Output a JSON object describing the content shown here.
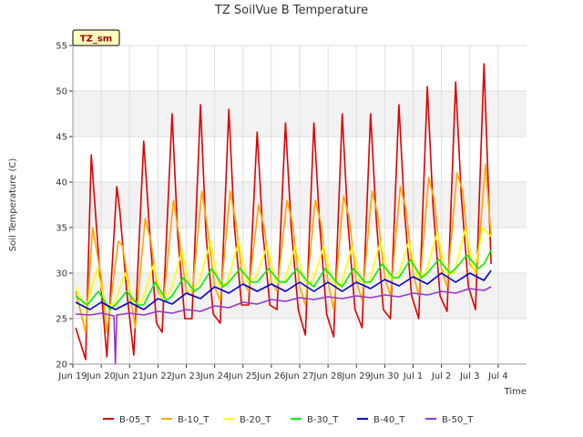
{
  "chart_data": {
    "type": "line",
    "title": "TZ SoilVue B Temperature",
    "xlabel": "Time",
    "ylabel": "Soil Temperature (C)",
    "badge": "TZ_sm",
    "ylim": [
      20,
      55
    ],
    "yticks": [
      20,
      25,
      30,
      35,
      40,
      45,
      50,
      55
    ],
    "xlim": [
      0,
      16
    ],
    "xtick_labels": [
      "Jun 19",
      "Jun 20",
      "Jun 21",
      "Jun 22",
      "Jun 23",
      "Jun 24",
      "Jun 25",
      "Jun 26",
      "Jun 27",
      "Jun 28",
      "Jun 29",
      "Jun 30",
      "Jul 1",
      "Jul 2",
      "Jul 3",
      "Jul 4"
    ],
    "band_color": "#f2f2f2",
    "grid": true,
    "legend_position": "bottom",
    "series": [
      {
        "name": "B-05_T",
        "color": "#dd0000",
        "x": [
          0.1,
          0.45,
          0.65,
          0.95,
          1.2,
          1.55,
          1.65,
          1.9,
          2.15,
          2.5,
          2.7,
          2.95,
          3.15,
          3.5,
          3.7,
          3.95,
          4.2,
          4.5,
          4.7,
          4.95,
          5.2,
          5.5,
          5.7,
          5.95,
          6.2,
          6.5,
          6.7,
          6.95,
          7.2,
          7.5,
          7.7,
          7.95,
          8.2,
          8.5,
          8.7,
          8.95,
          9.2,
          9.5,
          9.7,
          9.95,
          10.2,
          10.5,
          10.7,
          10.95,
          11.2,
          11.5,
          11.7,
          11.95,
          12.2,
          12.5,
          12.7,
          12.95,
          13.2,
          13.5,
          13.7,
          13.95,
          14.2,
          14.5,
          14.75
        ],
        "y": [
          24.0,
          20.5,
          43.0,
          30.0,
          20.8,
          39.5,
          37.0,
          28.0,
          21.0,
          44.5,
          35.0,
          24.5,
          23.5,
          47.5,
          34.0,
          25.0,
          25.0,
          48.5,
          34.0,
          25.5,
          24.5,
          48.0,
          35.0,
          26.5,
          26.5,
          45.5,
          34.5,
          26.5,
          26.0,
          46.5,
          35.0,
          26.0,
          23.2,
          46.5,
          35.5,
          25.5,
          23.0,
          47.5,
          35.5,
          26.0,
          24.0,
          47.5,
          36.0,
          26.0,
          25.0,
          48.5,
          36.5,
          27.5,
          25.0,
          50.5,
          37.5,
          27.5,
          25.8,
          51.0,
          38.5,
          28.5,
          26.0,
          53.0,
          31.0
        ]
      },
      {
        "name": "B-10_T",
        "color": "#ffa500",
        "x": [
          0.1,
          0.45,
          0.7,
          1.0,
          1.2,
          1.6,
          1.75,
          2.0,
          2.2,
          2.55,
          2.75,
          3.0,
          3.2,
          3.55,
          3.75,
          4.0,
          4.2,
          4.55,
          4.75,
          5.0,
          5.2,
          5.55,
          5.75,
          6.0,
          6.2,
          6.55,
          6.75,
          7.0,
          7.2,
          7.55,
          7.75,
          8.0,
          8.2,
          8.55,
          8.75,
          9.0,
          9.2,
          9.55,
          9.75,
          10.0,
          10.2,
          10.55,
          10.75,
          11.0,
          11.2,
          11.55,
          11.75,
          12.0,
          12.2,
          12.55,
          12.75,
          13.0,
          13.2,
          13.55,
          13.75,
          14.0,
          14.25,
          14.55,
          14.75
        ],
        "y": [
          28.0,
          23.5,
          35.0,
          29.5,
          23.5,
          33.5,
          33.0,
          28.0,
          24.0,
          36.0,
          33.5,
          28.0,
          27.0,
          38.0,
          34.0,
          28.0,
          27.5,
          39.0,
          35.0,
          28.5,
          27.0,
          39.0,
          35.5,
          29.0,
          28.0,
          37.5,
          35.0,
          29.0,
          28.0,
          38.0,
          35.5,
          28.5,
          26.5,
          38.0,
          35.5,
          29.0,
          26.0,
          38.5,
          36.0,
          29.0,
          27.0,
          39.0,
          36.5,
          29.5,
          27.5,
          39.5,
          37.0,
          30.0,
          27.5,
          40.5,
          38.0,
          30.5,
          28.5,
          41.0,
          39.0,
          31.0,
          30.0,
          42.0,
          34.0
        ]
      },
      {
        "name": "B-20_T",
        "color": "#ffff00",
        "x": [
          0.1,
          0.45,
          0.85,
          1.15,
          1.45,
          1.85,
          2.15,
          2.45,
          2.85,
          3.15,
          3.45,
          3.85,
          4.15,
          4.45,
          4.85,
          5.15,
          5.45,
          5.85,
          6.15,
          6.45,
          6.85,
          7.15,
          7.45,
          7.85,
          8.15,
          8.45,
          8.85,
          9.15,
          9.45,
          9.85,
          10.15,
          10.45,
          10.85,
          11.15,
          11.45,
          11.85,
          12.15,
          12.45,
          12.85,
          13.15,
          13.45,
          13.85,
          14.15,
          14.45,
          14.75
        ],
        "y": [
          28.5,
          26.0,
          30.5,
          26.5,
          26.5,
          30.0,
          26.5,
          27.0,
          31.0,
          27.0,
          28.0,
          32.5,
          28.0,
          29.0,
          33.5,
          28.5,
          29.0,
          33.5,
          29.0,
          29.5,
          33.0,
          29.0,
          29.0,
          33.0,
          29.0,
          29.0,
          33.0,
          29.0,
          28.5,
          33.0,
          29.0,
          29.0,
          33.5,
          29.5,
          29.5,
          33.5,
          29.5,
          30.0,
          34.5,
          30.0,
          30.0,
          35.0,
          30.0,
          35.0,
          34.0
        ]
      },
      {
        "name": "B-30_T",
        "color": "#00ee00",
        "x": [
          0.1,
          0.5,
          0.9,
          1.3,
          1.5,
          1.9,
          2.3,
          2.5,
          2.9,
          3.3,
          3.5,
          3.9,
          4.3,
          4.5,
          4.9,
          5.3,
          5.5,
          5.9,
          6.3,
          6.5,
          6.9,
          7.3,
          7.5,
          7.9,
          8.3,
          8.5,
          8.9,
          9.3,
          9.5,
          9.9,
          10.3,
          10.5,
          10.9,
          11.3,
          11.5,
          11.9,
          12.3,
          12.5,
          12.9,
          13.3,
          13.5,
          13.9,
          14.3,
          14.5,
          14.75
        ],
        "y": [
          27.5,
          26.5,
          28.0,
          26.0,
          26.5,
          28.0,
          26.5,
          26.5,
          29.0,
          27.0,
          27.5,
          29.5,
          28.0,
          28.5,
          30.5,
          28.5,
          29.0,
          30.5,
          29.0,
          29.0,
          30.5,
          29.0,
          29.0,
          30.5,
          29.0,
          28.5,
          30.5,
          29.0,
          28.5,
          30.5,
          29.0,
          29.0,
          31.0,
          29.5,
          29.5,
          31.5,
          29.5,
          30.0,
          31.5,
          30.0,
          30.5,
          32.0,
          30.5,
          31.0,
          32.5
        ]
      },
      {
        "name": "B-40_T",
        "color": "#0000cc",
        "x": [
          0.1,
          0.6,
          1.0,
          1.5,
          2.0,
          2.5,
          3.0,
          3.5,
          4.0,
          4.5,
          5.0,
          5.5,
          6.0,
          6.5,
          7.0,
          7.5,
          8.0,
          8.5,
          9.0,
          9.5,
          10.0,
          10.5,
          11.0,
          11.5,
          12.0,
          12.5,
          13.0,
          13.5,
          14.0,
          14.5,
          14.75
        ],
        "y": [
          26.8,
          26.0,
          26.8,
          26.0,
          26.8,
          26.0,
          27.2,
          26.6,
          27.8,
          27.2,
          28.5,
          27.8,
          28.8,
          28.0,
          28.8,
          28.0,
          29.0,
          28.0,
          29.0,
          28.0,
          29.0,
          28.3,
          29.3,
          28.6,
          29.6,
          28.8,
          30.0,
          29.0,
          30.0,
          29.2,
          30.3
        ]
      },
      {
        "name": "B-50_T",
        "color": "#9933cc",
        "x": [
          0.1,
          0.6,
          1.0,
          1.45,
          1.5,
          1.55,
          2.0,
          2.5,
          3.0,
          3.5,
          4.0,
          4.5,
          5.0,
          5.5,
          6.0,
          6.5,
          7.0,
          7.5,
          8.0,
          8.5,
          9.0,
          9.5,
          10.0,
          10.5,
          11.0,
          11.5,
          12.0,
          12.5,
          13.0,
          13.5,
          14.0,
          14.5,
          14.75
        ],
        "y": [
          25.5,
          25.4,
          25.6,
          25.3,
          20.0,
          25.4,
          25.6,
          25.4,
          25.8,
          25.6,
          26.0,
          25.8,
          26.4,
          26.2,
          26.8,
          26.6,
          27.1,
          26.9,
          27.3,
          27.1,
          27.4,
          27.2,
          27.5,
          27.3,
          27.6,
          27.4,
          27.8,
          27.6,
          28.0,
          27.8,
          28.3,
          28.1,
          28.5
        ]
      }
    ]
  }
}
